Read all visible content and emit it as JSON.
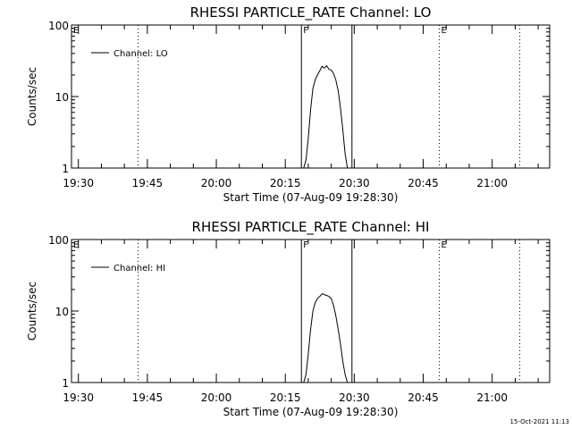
{
  "footer": {
    "timestamp": "15-Oct-2021 11:13"
  },
  "chart_data": [
    {
      "type": "line",
      "title": "RHESSI PARTICLE_RATE Channel: LO",
      "xlabel": "Start Time (07-Aug-09 19:28:30)",
      "ylabel": "Counts/sec",
      "yscale": "log",
      "ylim": [
        1,
        100
      ],
      "xlim": [
        "19:28:30",
        "21:12:30"
      ],
      "x_tick_labels": [
        "19:30",
        "19:45",
        "20:00",
        "20:15",
        "20:30",
        "20:45",
        "21:00"
      ],
      "y_tick_labels": [
        "1",
        "10",
        "100"
      ],
      "legend": {
        "entries": [
          "Channel: LO"
        ],
        "position": "top-left"
      },
      "series": [
        {
          "name": "Channel: LO",
          "x": [
            "20:19:00",
            "20:19:30",
            "20:20:00",
            "20:20:30",
            "20:21:00",
            "20:21:30",
            "20:22:00",
            "20:22:30",
            "20:23:00",
            "20:23:30",
            "20:24:00",
            "20:24:30",
            "20:25:00",
            "20:25:30",
            "20:26:00",
            "20:26:30",
            "20:27:00",
            "20:27:30",
            "20:28:00",
            "20:28:30"
          ],
          "y": [
            1,
            1.3,
            2.6,
            6.5,
            13,
            17,
            20,
            23,
            26.5,
            25,
            27,
            24,
            23.5,
            21,
            17,
            12,
            7,
            3.5,
            1.6,
            1
          ]
        }
      ],
      "markers": [
        {
          "label": "E",
          "time": "19:28:30",
          "style": "edge"
        },
        {
          "label": "",
          "time": "19:43:00",
          "style": "dotted"
        },
        {
          "label": "F",
          "time": "20:18:30",
          "style": "solid"
        },
        {
          "label": "",
          "time": "20:29:30",
          "style": "solid"
        },
        {
          "label": "E",
          "time": "20:48:30",
          "style": "dotted"
        },
        {
          "label": "",
          "time": "21:06:00",
          "style": "dotted"
        }
      ]
    },
    {
      "type": "line",
      "title": "RHESSI PARTICLE_RATE Channel: HI",
      "xlabel": "Start Time (07-Aug-09 19:28:30)",
      "ylabel": "Counts/sec",
      "yscale": "log",
      "ylim": [
        1,
        100
      ],
      "xlim": [
        "19:28:30",
        "21:12:30"
      ],
      "x_tick_labels": [
        "19:30",
        "19:45",
        "20:00",
        "20:15",
        "20:30",
        "20:45",
        "21:00"
      ],
      "y_tick_labels": [
        "1",
        "10",
        "100"
      ],
      "legend": {
        "entries": [
          "Channel: HI"
        ],
        "position": "top-left"
      },
      "series": [
        {
          "name": "Channel: HI",
          "x": [
            "20:19:00",
            "20:19:30",
            "20:20:00",
            "20:20:30",
            "20:21:00",
            "20:21:30",
            "20:22:00",
            "20:22:30",
            "20:23:00",
            "20:23:30",
            "20:24:00",
            "20:24:30",
            "20:25:00",
            "20:25:30",
            "20:26:00",
            "20:26:30",
            "20:27:00",
            "20:27:30",
            "20:28:00",
            "20:28:30"
          ],
          "y": [
            1,
            1.3,
            2.5,
            5.5,
            10,
            13,
            15,
            16,
            17.5,
            17,
            16.5,
            16,
            15,
            12,
            8.5,
            5.5,
            3.5,
            2,
            1.3,
            1
          ]
        }
      ],
      "markers": [
        {
          "label": "E",
          "time": "19:28:30",
          "style": "edge"
        },
        {
          "label": "",
          "time": "19:43:00",
          "style": "dotted"
        },
        {
          "label": "F",
          "time": "20:18:30",
          "style": "solid"
        },
        {
          "label": "",
          "time": "20:29:30",
          "style": "solid"
        },
        {
          "label": "E",
          "time": "20:48:30",
          "style": "dotted"
        },
        {
          "label": "",
          "time": "21:06:00",
          "style": "dotted"
        }
      ]
    }
  ]
}
